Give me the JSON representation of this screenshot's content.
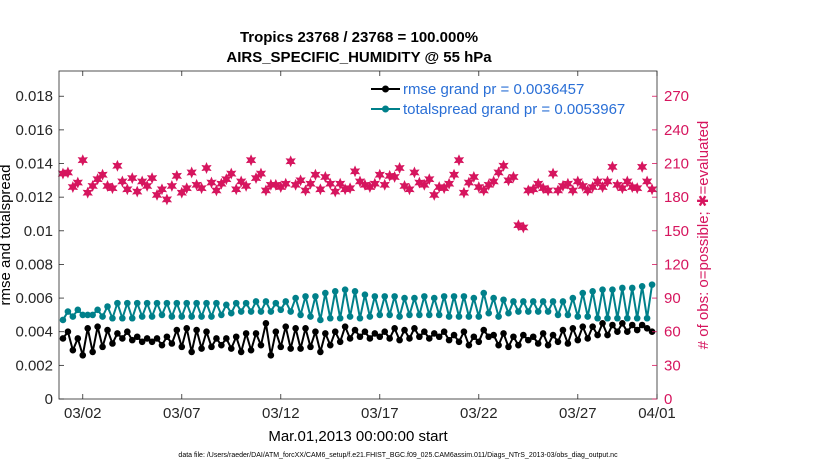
{
  "chart_data": {
    "type": "line",
    "title": "Tropics 23768 / 23768 = 100.000%",
    "subtitle": "AIRS_SPECIFIC_HUMIDITY @ 55 hPa",
    "xlabel": "Mar.01,2013 00:00:00 start",
    "ylabel_left": "rmse and totalspread",
    "ylabel_right": "# of obs: o=possible; ✱=evaluated",
    "footnote": "data file: /Users/raeder/DAI/ATM_forcXX/CAM6_setup/f.e21.FHIST_BGC.f09_025.CAM6assim.011/Diags_NTrS_2013-03/obs_diag_output.nc",
    "xlim": [
      0.8,
      31
    ],
    "ylim_left": [
      0,
      0.0195
    ],
    "ylim_right": [
      0,
      292.5
    ],
    "x_ticks": [
      {
        "day": 2,
        "label": "03/02"
      },
      {
        "day": 7,
        "label": "03/07"
      },
      {
        "day": 12,
        "label": "03/12"
      },
      {
        "day": 17,
        "label": "03/17"
      },
      {
        "day": 22,
        "label": "03/22"
      },
      {
        "day": 27,
        "label": "03/27"
      },
      {
        "day": 31,
        "label": "04/01"
      }
    ],
    "y_left_ticks": [
      {
        "value": 0,
        "label": "0"
      },
      {
        "value": 0.002,
        "label": "0.002"
      },
      {
        "value": 0.004,
        "label": "0.004"
      },
      {
        "value": 0.006,
        "label": "0.006"
      },
      {
        "value": 0.008,
        "label": "0.008"
      },
      {
        "value": 0.01,
        "label": "0.01"
      },
      {
        "value": 0.012,
        "label": "0.012"
      },
      {
        "value": 0.014,
        "label": "0.014"
      },
      {
        "value": 0.016,
        "label": "0.016"
      },
      {
        "value": 0.018,
        "label": "0.018"
      }
    ],
    "y_right_ticks": [
      {
        "value": 0,
        "label": "0"
      },
      {
        "value": 30,
        "label": "30"
      },
      {
        "value": 60,
        "label": "60"
      },
      {
        "value": 90,
        "label": "90"
      },
      {
        "value": 120,
        "label": "120"
      },
      {
        "value": 150,
        "label": "150"
      },
      {
        "value": 180,
        "label": "180"
      },
      {
        "value": 210,
        "label": "210"
      },
      {
        "value": 240,
        "label": "240"
      },
      {
        "value": 270,
        "label": "270"
      }
    ],
    "x": [
      1.0,
      1.25,
      1.5,
      1.75,
      2.0,
      2.25,
      2.5,
      2.75,
      3.0,
      3.25,
      3.5,
      3.75,
      4.0,
      4.25,
      4.5,
      4.75,
      5.0,
      5.25,
      5.5,
      5.75,
      6.0,
      6.25,
      6.5,
      6.75,
      7.0,
      7.25,
      7.5,
      7.75,
      8.0,
      8.25,
      8.5,
      8.75,
      9.0,
      9.25,
      9.5,
      9.75,
      10.0,
      10.25,
      10.5,
      10.75,
      11.0,
      11.25,
      11.5,
      11.75,
      12.0,
      12.25,
      12.5,
      12.75,
      13.0,
      13.25,
      13.5,
      13.75,
      14.0,
      14.25,
      14.5,
      14.75,
      15.0,
      15.25,
      15.5,
      15.75,
      16.0,
      16.25,
      16.5,
      16.75,
      17.0,
      17.25,
      17.5,
      17.75,
      18.0,
      18.25,
      18.5,
      18.75,
      19.0,
      19.25,
      19.5,
      19.75,
      20.0,
      20.25,
      20.5,
      20.75,
      21.0,
      21.25,
      21.5,
      21.75,
      22.0,
      22.25,
      22.5,
      22.75,
      23.0,
      23.25,
      23.5,
      23.75,
      24.0,
      24.25,
      24.5,
      24.75,
      25.0,
      25.25,
      25.5,
      25.75,
      26.0,
      26.25,
      26.5,
      26.75,
      27.0,
      27.25,
      27.5,
      27.75,
      28.0,
      28.25,
      28.5,
      28.75,
      29.0,
      29.25,
      29.5,
      29.75,
      30.0,
      30.25,
      30.5,
      30.75
    ],
    "series": [
      {
        "name": "rmse grand pr = 0.0036457",
        "color": "#000000",
        "marker": "circle",
        "axis": "left",
        "values": [
          0.0036,
          0.004,
          0.0029,
          0.0036,
          0.0026,
          0.0042,
          0.0028,
          0.0043,
          0.0031,
          0.0041,
          0.0033,
          0.0039,
          0.0036,
          0.004,
          0.0035,
          0.0037,
          0.0034,
          0.0036,
          0.0034,
          0.0036,
          0.0032,
          0.0037,
          0.0033,
          0.0041,
          0.0031,
          0.0042,
          0.0028,
          0.0041,
          0.003,
          0.004,
          0.0031,
          0.0036,
          0.0032,
          0.0036,
          0.003,
          0.0037,
          0.0028,
          0.0039,
          0.0029,
          0.0039,
          0.0032,
          0.0045,
          0.0026,
          0.004,
          0.0031,
          0.0043,
          0.003,
          0.0042,
          0.003,
          0.0042,
          0.0031,
          0.004,
          0.0028,
          0.0039,
          0.0032,
          0.004,
          0.0034,
          0.0043,
          0.0036,
          0.0041,
          0.0037,
          0.004,
          0.0036,
          0.0039,
          0.0037,
          0.004,
          0.0036,
          0.0042,
          0.0035,
          0.0041,
          0.0036,
          0.0042,
          0.0037,
          0.004,
          0.0036,
          0.0039,
          0.0037,
          0.004,
          0.0035,
          0.0038,
          0.0034,
          0.004,
          0.0032,
          0.0037,
          0.0034,
          0.0041,
          0.0037,
          0.0038,
          0.0032,
          0.0039,
          0.0031,
          0.0037,
          0.0032,
          0.0038,
          0.0035,
          0.0037,
          0.0033,
          0.0039,
          0.0032,
          0.0038,
          0.0034,
          0.0041,
          0.0033,
          0.0042,
          0.0035,
          0.0043,
          0.0036,
          0.0043,
          0.0038,
          0.0045,
          0.0038,
          0.0044,
          0.004,
          0.0045,
          0.004,
          0.0044,
          0.0041,
          0.0044,
          0.0042,
          0.004
        ]
      },
      {
        "name": "totalspread grand pr = 0.0053967",
        "color": "#00808a",
        "marker": "circle",
        "axis": "left",
        "values": [
          0.0047,
          0.0052,
          0.0049,
          0.0053,
          0.005,
          0.005,
          0.005,
          0.0053,
          0.0049,
          0.0055,
          0.0048,
          0.0057,
          0.0048,
          0.0057,
          0.0048,
          0.0057,
          0.0049,
          0.0057,
          0.0049,
          0.0057,
          0.005,
          0.0057,
          0.0049,
          0.0057,
          0.0049,
          0.0057,
          0.0049,
          0.0057,
          0.0049,
          0.0057,
          0.0049,
          0.0057,
          0.005,
          0.0056,
          0.0051,
          0.0057,
          0.0052,
          0.0057,
          0.0052,
          0.0058,
          0.0052,
          0.0058,
          0.0052,
          0.0057,
          0.0053,
          0.0058,
          0.0052,
          0.006,
          0.005,
          0.0061,
          0.0049,
          0.0061,
          0.0047,
          0.0063,
          0.0048,
          0.0064,
          0.0048,
          0.0065,
          0.0049,
          0.0064,
          0.0048,
          0.0062,
          0.0049,
          0.0061,
          0.005,
          0.0061,
          0.005,
          0.0061,
          0.0049,
          0.006,
          0.005,
          0.006,
          0.005,
          0.0061,
          0.005,
          0.006,
          0.005,
          0.0061,
          0.0049,
          0.0061,
          0.0049,
          0.0061,
          0.0049,
          0.006,
          0.0049,
          0.0063,
          0.0051,
          0.006,
          0.0049,
          0.0059,
          0.0051,
          0.0058,
          0.0052,
          0.0058,
          0.0052,
          0.0058,
          0.0052,
          0.0058,
          0.0052,
          0.0058,
          0.005,
          0.0058,
          0.005,
          0.006,
          0.0049,
          0.0063,
          0.0049,
          0.0064,
          0.0048,
          0.0065,
          0.0048,
          0.0065,
          0.0048,
          0.0066,
          0.0048,
          0.0066,
          0.0048,
          0.0067,
          0.0048,
          0.0068
        ]
      },
      {
        "name": "# of obs evaluated",
        "color": "#d6155e",
        "marker": "star",
        "axis": "right",
        "values": [
          201,
          202,
          189,
          193,
          213,
          184,
          190,
          196,
          200,
          190,
          188,
          208,
          194,
          187,
          197,
          185,
          194,
          190,
          197,
          182,
          187,
          178,
          190,
          199,
          184,
          188,
          202,
          191,
          188,
          206,
          193,
          186,
          192,
          196,
          201,
          187,
          194,
          190,
          213,
          197,
          201,
          186,
          191,
          191,
          189,
          192,
          212,
          191,
          195,
          186,
          192,
          200,
          187,
          198,
          192,
          185,
          192,
          187,
          188,
          203,
          194,
          191,
          189,
          192,
          200,
          191,
          199,
          198,
          206,
          190,
          187,
          202,
          193,
          191,
          196,
          182,
          189,
          188,
          192,
          200,
          213,
          184,
          193,
          198,
          189,
          186,
          191,
          194,
          202,
          208,
          195,
          198,
          155,
          153,
          186,
          187,
          192,
          188,
          186,
          201,
          186,
          190,
          192,
          186,
          194,
          190,
          186,
          189,
          194,
          189,
          194,
          207,
          191,
          188,
          194,
          189,
          188,
          207,
          194,
          187
        ]
      }
    ]
  },
  "legend": {
    "rmse_label": "rmse grand pr = 0.0036457",
    "spread_label": "totalspread grand pr = 0.0053967"
  },
  "colors": {
    "rmse": "#000000",
    "spread": "#00808a",
    "obs": "#d6155e",
    "legend_text": "#2a6fd6"
  }
}
